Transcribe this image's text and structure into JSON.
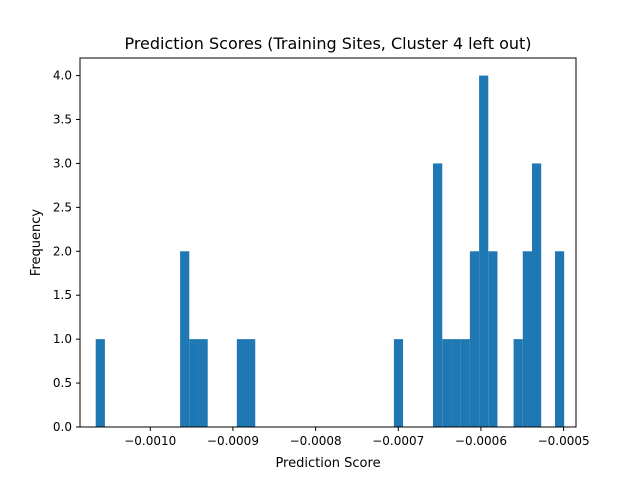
{
  "chart_data": {
    "type": "bar",
    "title": "Prediction Scores (Training Sites, Cluster 4 left out)",
    "xlabel": "Prediction Score",
    "ylabel": "Frequency",
    "xlim": [
      -0.001085,
      -0.000485
    ],
    "ylim": [
      0,
      4.2
    ],
    "x_ticks": [
      -0.001,
      -0.0009,
      -0.0008,
      -0.0007,
      -0.0006,
      -0.0005
    ],
    "x_tick_labels": [
      "−0.0010",
      "−0.0009",
      "−0.0008",
      "−0.0007",
      "−0.0006",
      "−0.0005"
    ],
    "y_ticks": [
      0.0,
      0.5,
      1.0,
      1.5,
      2.0,
      2.5,
      3.0,
      3.5,
      4.0
    ],
    "y_tick_labels": [
      "0.0",
      "0.5",
      "1.0",
      "1.5",
      "2.0",
      "2.5",
      "3.0",
      "3.5",
      "4.0"
    ],
    "bar_color": "#1f77b4",
    "bins": [
      {
        "x0": -0.001066,
        "x1": -0.0010549,
        "count": 1
      },
      {
        "x0": -0.0009639,
        "x1": -0.0009528,
        "count": 2
      },
      {
        "x0": -0.0009528,
        "x1": -0.0009416,
        "count": 1
      },
      {
        "x0": -0.0009416,
        "x1": -0.0009305,
        "count": 1
      },
      {
        "x0": -0.0008953,
        "x1": -0.0008842,
        "count": 1
      },
      {
        "x0": -0.0008842,
        "x1": -0.000873,
        "count": 1
      },
      {
        "x0": -0.0007053,
        "x1": -0.0006942,
        "count": 1
      },
      {
        "x0": -0.000658,
        "x1": -0.0006468,
        "count": 3
      },
      {
        "x0": -0.0006468,
        "x1": -0.0006357,
        "count": 1
      },
      {
        "x0": -0.0006357,
        "x1": -0.0006245,
        "count": 1
      },
      {
        "x0": -0.0006245,
        "x1": -0.0006134,
        "count": 1
      },
      {
        "x0": -0.0006134,
        "x1": -0.0006022,
        "count": 2
      },
      {
        "x0": -0.0006022,
        "x1": -0.0005911,
        "count": 4
      },
      {
        "x0": -0.0005911,
        "x1": -0.00058,
        "count": 2
      },
      {
        "x0": -0.0005605,
        "x1": -0.0005494,
        "count": 1
      },
      {
        "x0": -0.0005494,
        "x1": -0.0005382,
        "count": 2
      },
      {
        "x0": -0.0005382,
        "x1": -0.0005271,
        "count": 3
      },
      {
        "x0": -0.0005104,
        "x1": -0.0004993,
        "count": 2
      }
    ]
  }
}
